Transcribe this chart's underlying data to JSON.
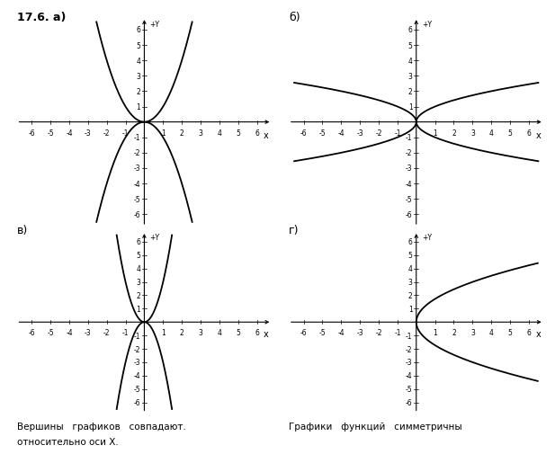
{
  "title_a": "17.6. а)",
  "title_b": "б)",
  "title_c": "в)",
  "title_d": "г)",
  "xlim": [
    -6.8,
    6.8
  ],
  "ylim": [
    -6.8,
    6.8
  ],
  "xticks": [
    -6,
    -5,
    -4,
    -3,
    -2,
    -1,
    1,
    2,
    3,
    4,
    5,
    6
  ],
  "yticks": [
    -6,
    -5,
    -4,
    -3,
    -2,
    -1,
    1,
    2,
    3,
    4,
    5,
    6
  ],
  "curve_color": "#000000",
  "background_color": "#ffffff",
  "text_bottom_left": "Вершины   графиков   совпадают.",
  "text_bottom_left2": "относительно оси X.",
  "text_bottom_right": "Графики   функций   симметричны"
}
